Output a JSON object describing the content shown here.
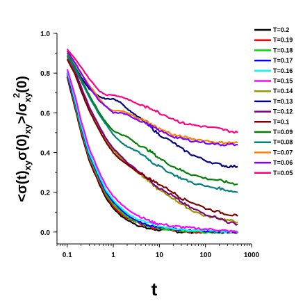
{
  "chart_data": {
    "type": "line",
    "title": "",
    "xlabel": "t",
    "ylabel": "<σ(t)_{xy}σ(0)_{xy}>/σ_{xy}^{2}(0)",
    "ylabel_parts": {
      "open": "<σ(t)",
      "s1": "xy",
      "mid": "σ(0)",
      "s2": "xy",
      "close": ">/σ",
      "s3": "xy",
      "sup": "2",
      "end": "(0)"
    },
    "x_scale": "log",
    "xlim": [
      0.06,
      1000
    ],
    "ylim": [
      -0.06,
      1.0
    ],
    "x_ticks": [
      {
        "value": 0.1,
        "label": "0.1"
      },
      {
        "value": 1,
        "label": "1"
      },
      {
        "value": 10,
        "label": "10"
      },
      {
        "value": 100,
        "label": "100"
      },
      {
        "value": 1000,
        "label": "1000"
      }
    ],
    "y_ticks": [
      {
        "value": 0.0,
        "label": "0.0"
      },
      {
        "value": 0.2,
        "label": "0.2"
      },
      {
        "value": 0.4,
        "label": "0.4"
      },
      {
        "value": 0.6,
        "label": "0.6"
      },
      {
        "value": 0.8,
        "label": "0.8"
      },
      {
        "value": 1.0,
        "label": "1.0"
      }
    ],
    "legend_position": "right",
    "x": [
      0.1,
      0.15,
      0.2,
      0.3,
      0.5,
      0.7,
      1,
      1.5,
      2,
      3,
      5,
      7,
      10,
      20,
      30,
      50,
      100,
      200,
      300,
      500
    ],
    "series": [
      {
        "name": "T=0.2",
        "color": "#000000",
        "values": [
          0.78,
          0.62,
          0.5,
          0.36,
          0.24,
          0.17,
          0.12,
          0.08,
          0.06,
          0.04,
          0.02,
          0.015,
          0.01,
          0.005,
          0.0,
          0.0,
          0.0,
          0.0,
          0.0,
          0.0
        ]
      },
      {
        "name": "T=0.19",
        "color": "#ff0000",
        "values": [
          0.79,
          0.63,
          0.51,
          0.37,
          0.25,
          0.18,
          0.13,
          0.09,
          0.07,
          0.05,
          0.03,
          0.02,
          0.015,
          0.01,
          0.005,
          0.0,
          0.0,
          0.0,
          0.0,
          0.0
        ]
      },
      {
        "name": "T=0.18",
        "color": "#00dd00",
        "values": [
          0.8,
          0.64,
          0.52,
          0.38,
          0.26,
          0.19,
          0.14,
          0.1,
          0.075,
          0.055,
          0.035,
          0.025,
          0.02,
          0.012,
          0.008,
          0.005,
          0.0,
          0.0,
          0.0,
          0.0
        ]
      },
      {
        "name": "T=0.17",
        "color": "#0000ff",
        "values": [
          0.8,
          0.65,
          0.53,
          0.39,
          0.27,
          0.2,
          0.15,
          0.11,
          0.085,
          0.06,
          0.04,
          0.03,
          0.025,
          0.015,
          0.01,
          0.008,
          0.005,
          0.003,
          0.0,
          0.0
        ]
      },
      {
        "name": "T=0.16",
        "color": "#00ffff",
        "values": [
          0.81,
          0.66,
          0.54,
          0.4,
          0.28,
          0.21,
          0.16,
          0.12,
          0.095,
          0.07,
          0.05,
          0.04,
          0.03,
          0.02,
          0.015,
          0.01,
          0.008,
          0.005,
          0.003,
          0.0
        ]
      },
      {
        "name": "T=0.15",
        "color": "#ff00ff",
        "values": [
          0.82,
          0.68,
          0.56,
          0.42,
          0.3,
          0.23,
          0.18,
          0.14,
          0.115,
          0.09,
          0.065,
          0.05,
          0.04,
          0.03,
          0.025,
          0.02,
          0.015,
          0.01,
          0.005,
          0.0
        ]
      },
      {
        "name": "T=0.14",
        "color": "#999900",
        "values": [
          0.88,
          0.8,
          0.73,
          0.63,
          0.52,
          0.46,
          0.41,
          0.37,
          0.34,
          0.31,
          0.27,
          0.24,
          0.21,
          0.17,
          0.14,
          0.11,
          0.08,
          0.07,
          0.06,
          0.05
        ]
      },
      {
        "name": "T=0.13",
        "color": "#000080",
        "values": [
          0.89,
          0.83,
          0.78,
          0.72,
          0.68,
          0.67,
          0.67,
          0.65,
          0.62,
          0.59,
          0.55,
          0.52,
          0.49,
          0.45,
          0.42,
          0.39,
          0.36,
          0.34,
          0.33,
          0.33
        ]
      },
      {
        "name": "T=0.12",
        "color": "#800080",
        "values": [
          0.89,
          0.81,
          0.73,
          0.63,
          0.53,
          0.47,
          0.42,
          0.38,
          0.35,
          0.32,
          0.28,
          0.25,
          0.22,
          0.18,
          0.15,
          0.12,
          0.09,
          0.07,
          0.05,
          0.04
        ]
      },
      {
        "name": "T=0.1",
        "color": "#800000",
        "values": [
          0.87,
          0.79,
          0.71,
          0.61,
          0.51,
          0.45,
          0.4,
          0.36,
          0.34,
          0.31,
          0.28,
          0.26,
          0.24,
          0.2,
          0.17,
          0.15,
          0.12,
          0.1,
          0.09,
          0.08
        ]
      },
      {
        "name": "T=0.09",
        "color": "#008000",
        "values": [
          0.9,
          0.83,
          0.77,
          0.69,
          0.6,
          0.55,
          0.51,
          0.49,
          0.48,
          0.45,
          0.42,
          0.4,
          0.37,
          0.33,
          0.31,
          0.29,
          0.27,
          0.26,
          0.25,
          0.24
        ]
      },
      {
        "name": "T=0.08",
        "color": "#008080",
        "values": [
          0.89,
          0.82,
          0.76,
          0.68,
          0.59,
          0.54,
          0.49,
          0.45,
          0.43,
          0.41,
          0.38,
          0.35,
          0.33,
          0.29,
          0.27,
          0.25,
          0.23,
          0.22,
          0.21,
          0.2
        ]
      },
      {
        "name": "T=0.07",
        "color": "#ff8000",
        "values": [
          0.91,
          0.85,
          0.8,
          0.74,
          0.67,
          0.63,
          0.61,
          0.61,
          0.6,
          0.58,
          0.56,
          0.54,
          0.52,
          0.49,
          0.48,
          0.47,
          0.46,
          0.45,
          0.45,
          0.45
        ]
      },
      {
        "name": "T=0.06",
        "color": "#8000ff",
        "values": [
          0.91,
          0.85,
          0.8,
          0.73,
          0.66,
          0.63,
          0.6,
          0.6,
          0.59,
          0.57,
          0.55,
          0.53,
          0.51,
          0.48,
          0.47,
          0.46,
          0.45,
          0.44,
          0.44,
          0.44
        ]
      },
      {
        "name": "T=0.05",
        "color": "#ff0080",
        "values": [
          0.92,
          0.87,
          0.83,
          0.77,
          0.71,
          0.69,
          0.69,
          0.68,
          0.67,
          0.65,
          0.63,
          0.62,
          0.6,
          0.57,
          0.55,
          0.54,
          0.53,
          0.52,
          0.51,
          0.5
        ]
      }
    ]
  }
}
